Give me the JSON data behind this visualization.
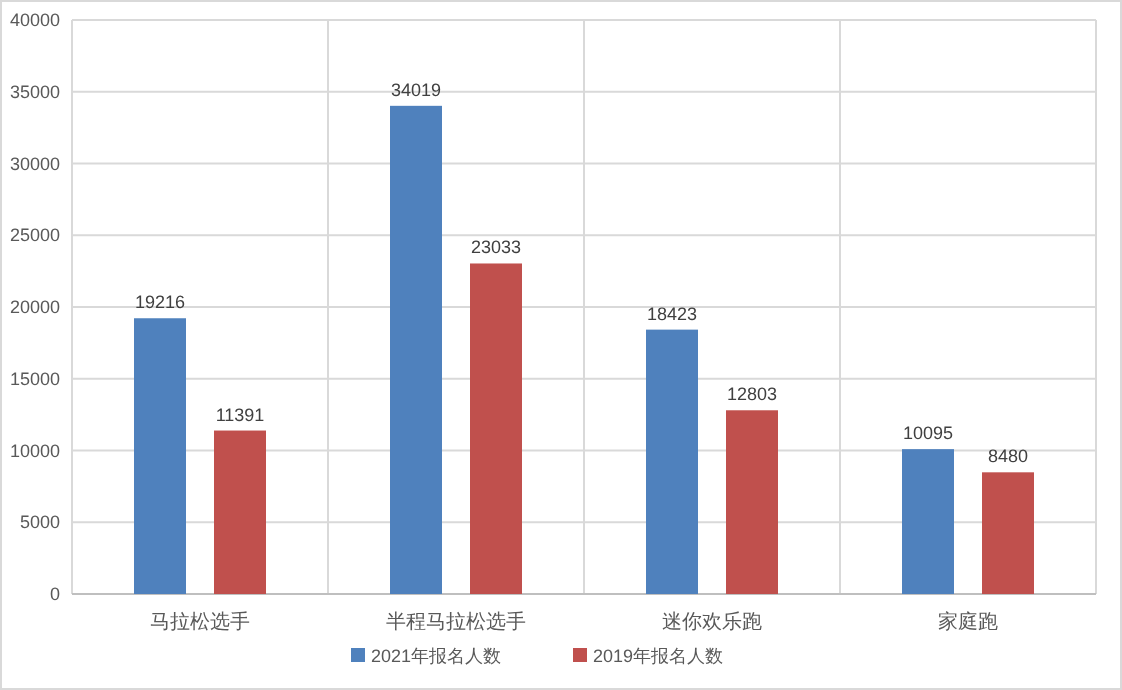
{
  "chart_data": {
    "type": "bar",
    "categories": [
      "马拉松选手",
      "半程马拉松选手",
      "迷你欢乐跑",
      "家庭跑"
    ],
    "series": [
      {
        "name": "2021年报名人数",
        "color": "#4f81bd",
        "values": [
          19216,
          34019,
          18423,
          10095
        ]
      },
      {
        "name": "2019年报名人数",
        "color": "#c0504d",
        "values": [
          11391,
          23033,
          12803,
          8480
        ]
      }
    ],
    "ylim": [
      0,
      40000
    ],
    "yticks": [
      0,
      5000,
      10000,
      15000,
      20000,
      25000,
      30000,
      35000,
      40000
    ],
    "grid": true,
    "legend": "bottom",
    "data_labels": true
  }
}
